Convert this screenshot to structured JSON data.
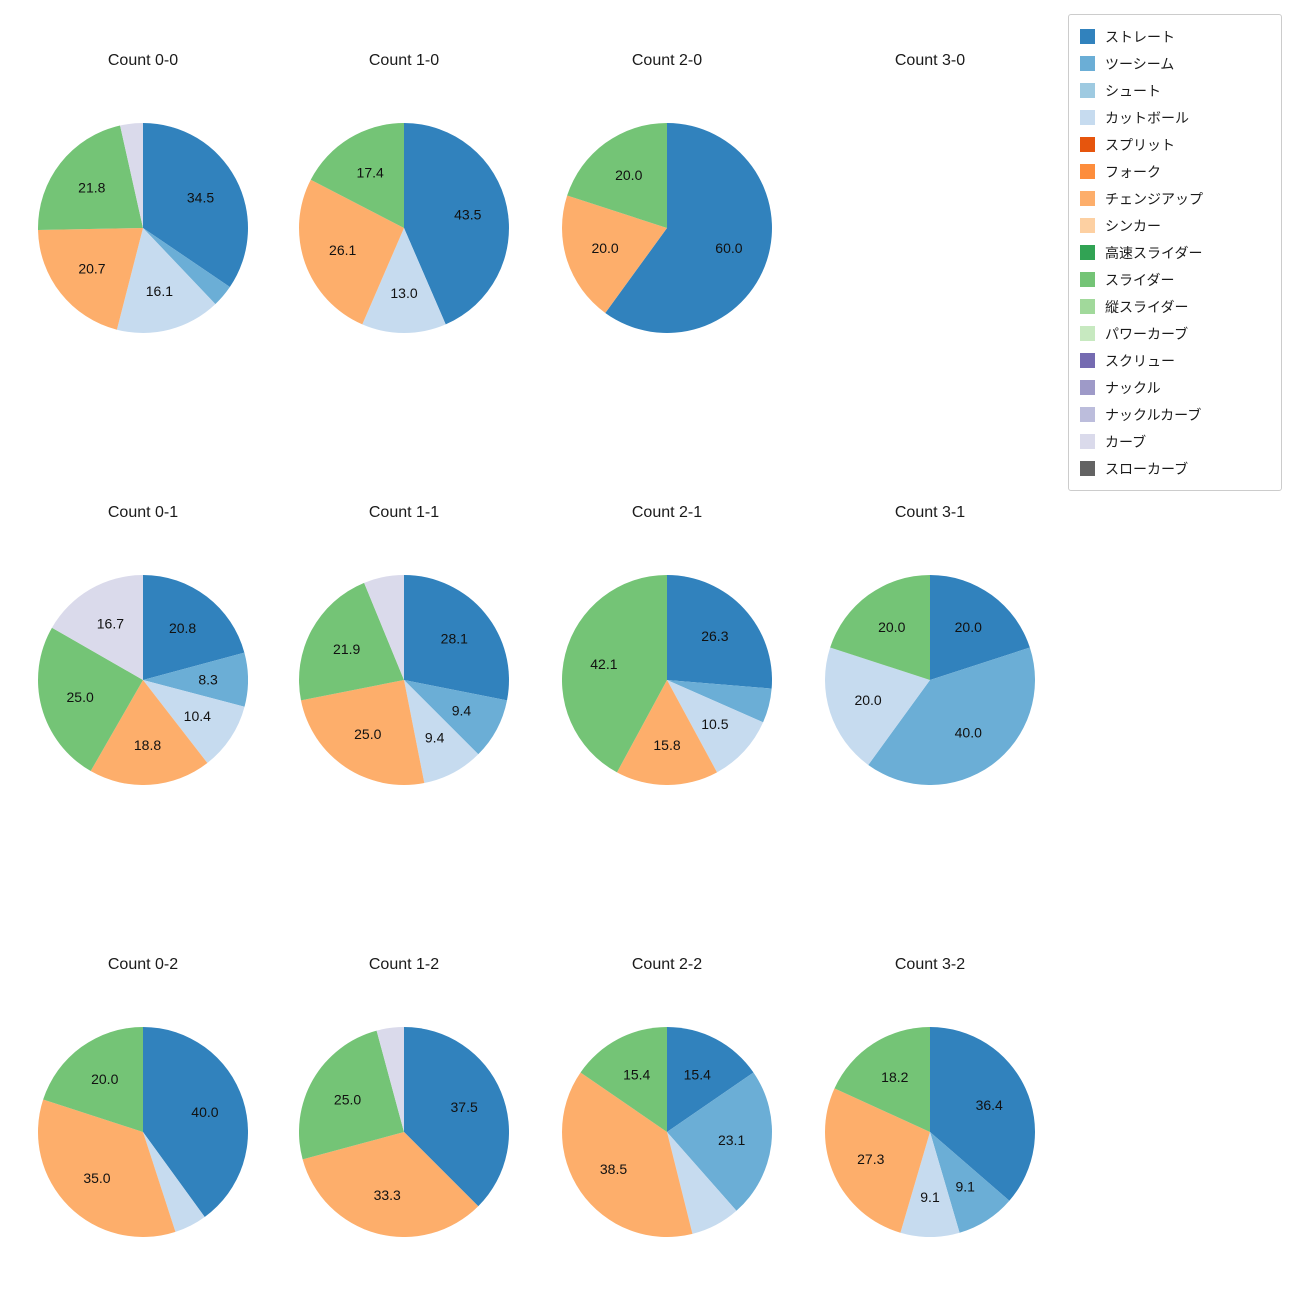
{
  "figure": {
    "background": "#ffffff",
    "text_color": "#1a1a1a"
  },
  "legend": {
    "position": "top-right",
    "items": [
      {
        "label": "ストレート",
        "color": "#3182bd"
      },
      {
        "label": "ツーシーム",
        "color": "#6baed6"
      },
      {
        "label": "シュート",
        "color": "#9ecae1"
      },
      {
        "label": "カットボール",
        "color": "#c6dbef"
      },
      {
        "label": "スプリット",
        "color": "#e6550d"
      },
      {
        "label": "フォーク",
        "color": "#fd8d3c"
      },
      {
        "label": "チェンジアップ",
        "color": "#fdae6b"
      },
      {
        "label": "シンカー",
        "color": "#fdd0a2"
      },
      {
        "label": "高速スライダー",
        "color": "#31a354"
      },
      {
        "label": "スライダー",
        "color": "#74c476"
      },
      {
        "label": "縦スライダー",
        "color": "#a1d99b"
      },
      {
        "label": "パワーカーブ",
        "color": "#c7e9c0"
      },
      {
        "label": "スクリュー",
        "color": "#756bb1"
      },
      {
        "label": "ナックル",
        "color": "#9e9ac8"
      },
      {
        "label": "ナックルカーブ",
        "color": "#bcbddc"
      },
      {
        "label": "カーブ",
        "color": "#dadaeb"
      },
      {
        "label": "スローカーブ",
        "color": "#636363"
      }
    ]
  },
  "chart_data": {
    "type": "pie",
    "unit": "percent",
    "start_angle": "12-oclock",
    "direction": "clockwise",
    "grid": "3 rows x 4 columns",
    "charts": [
      {
        "title": "Count 0-0",
        "slices": [
          {
            "name": "ストレート",
            "value": 34.5,
            "label": "34.5"
          },
          {
            "name": "ツーシーム",
            "value": 3.4,
            "label": ""
          },
          {
            "name": "カットボール",
            "value": 16.1,
            "label": "16.1"
          },
          {
            "name": "チェンジアップ",
            "value": 20.7,
            "label": "20.7"
          },
          {
            "name": "スライダー",
            "value": 21.8,
            "label": "21.8"
          },
          {
            "name": "カーブ",
            "value": 3.5,
            "label": ""
          }
        ]
      },
      {
        "title": "Count 1-0",
        "slices": [
          {
            "name": "ストレート",
            "value": 43.5,
            "label": "43.5"
          },
          {
            "name": "カットボール",
            "value": 13.0,
            "label": "13.0"
          },
          {
            "name": "チェンジアップ",
            "value": 26.1,
            "label": "26.1"
          },
          {
            "name": "スライダー",
            "value": 17.4,
            "label": "17.4"
          }
        ]
      },
      {
        "title": "Count 2-0",
        "slices": [
          {
            "name": "ストレート",
            "value": 60.0,
            "label": "60.0"
          },
          {
            "name": "チェンジアップ",
            "value": 20.0,
            "label": "20.0"
          },
          {
            "name": "スライダー",
            "value": 20.0,
            "label": "20.0"
          }
        ]
      },
      {
        "title": "Count 3-0",
        "slices": []
      },
      {
        "title": "Count 0-1",
        "slices": [
          {
            "name": "ストレート",
            "value": 20.8,
            "label": "20.8"
          },
          {
            "name": "ツーシーム",
            "value": 8.3,
            "label": "8.3"
          },
          {
            "name": "カットボール",
            "value": 10.4,
            "label": "10.4"
          },
          {
            "name": "チェンジアップ",
            "value": 18.8,
            "label": "18.8"
          },
          {
            "name": "スライダー",
            "value": 25.0,
            "label": "25.0"
          },
          {
            "name": "カーブ",
            "value": 16.7,
            "label": "16.7"
          }
        ]
      },
      {
        "title": "Count 1-1",
        "slices": [
          {
            "name": "ストレート",
            "value": 28.1,
            "label": "28.1"
          },
          {
            "name": "ツーシーム",
            "value": 9.4,
            "label": "9.4"
          },
          {
            "name": "カットボール",
            "value": 9.4,
            "label": "9.4"
          },
          {
            "name": "チェンジアップ",
            "value": 25.0,
            "label": "25.0"
          },
          {
            "name": "スライダー",
            "value": 21.9,
            "label": "21.9"
          },
          {
            "name": "カーブ",
            "value": 6.2,
            "label": ""
          }
        ]
      },
      {
        "title": "Count 2-1",
        "slices": [
          {
            "name": "ストレート",
            "value": 26.3,
            "label": "26.3"
          },
          {
            "name": "ツーシーム",
            "value": 5.3,
            "label": ""
          },
          {
            "name": "カットボール",
            "value": 10.5,
            "label": "10.5"
          },
          {
            "name": "チェンジアップ",
            "value": 15.8,
            "label": "15.8"
          },
          {
            "name": "スライダー",
            "value": 42.1,
            "label": "42.1"
          }
        ]
      },
      {
        "title": "Count 3-1",
        "slices": [
          {
            "name": "ストレート",
            "value": 20.0,
            "label": "20.0"
          },
          {
            "name": "ツーシーム",
            "value": 40.0,
            "label": "40.0"
          },
          {
            "name": "カットボール",
            "value": 20.0,
            "label": "20.0"
          },
          {
            "name": "スライダー",
            "value": 20.0,
            "label": "20.0"
          }
        ]
      },
      {
        "title": "Count 0-2",
        "slices": [
          {
            "name": "ストレート",
            "value": 40.0,
            "label": "40.0"
          },
          {
            "name": "カットボール",
            "value": 5.0,
            "label": ""
          },
          {
            "name": "チェンジアップ",
            "value": 35.0,
            "label": "35.0"
          },
          {
            "name": "スライダー",
            "value": 20.0,
            "label": "20.0"
          }
        ]
      },
      {
        "title": "Count 1-2",
        "slices": [
          {
            "name": "ストレート",
            "value": 37.5,
            "label": "37.5"
          },
          {
            "name": "チェンジアップ",
            "value": 33.3,
            "label": "33.3"
          },
          {
            "name": "スライダー",
            "value": 25.0,
            "label": "25.0"
          },
          {
            "name": "カーブ",
            "value": 4.2,
            "label": ""
          }
        ]
      },
      {
        "title": "Count 2-2",
        "slices": [
          {
            "name": "ストレート",
            "value": 15.4,
            "label": "15.4"
          },
          {
            "name": "ツーシーム",
            "value": 23.1,
            "label": "23.1"
          },
          {
            "name": "カットボール",
            "value": 7.6,
            "label": ""
          },
          {
            "name": "チェンジアップ",
            "value": 38.5,
            "label": "38.5"
          },
          {
            "name": "スライダー",
            "value": 15.4,
            "label": "15.4"
          }
        ]
      },
      {
        "title": "Count 3-2",
        "slices": [
          {
            "name": "ストレート",
            "value": 36.4,
            "label": "36.4"
          },
          {
            "name": "ツーシーム",
            "value": 9.1,
            "label": "9.1"
          },
          {
            "name": "カットボール",
            "value": 9.1,
            "label": "9.1"
          },
          {
            "name": "チェンジアップ",
            "value": 27.3,
            "label": "27.3"
          },
          {
            "name": "スライダー",
            "value": 18.2,
            "label": "18.2"
          }
        ]
      }
    ]
  }
}
